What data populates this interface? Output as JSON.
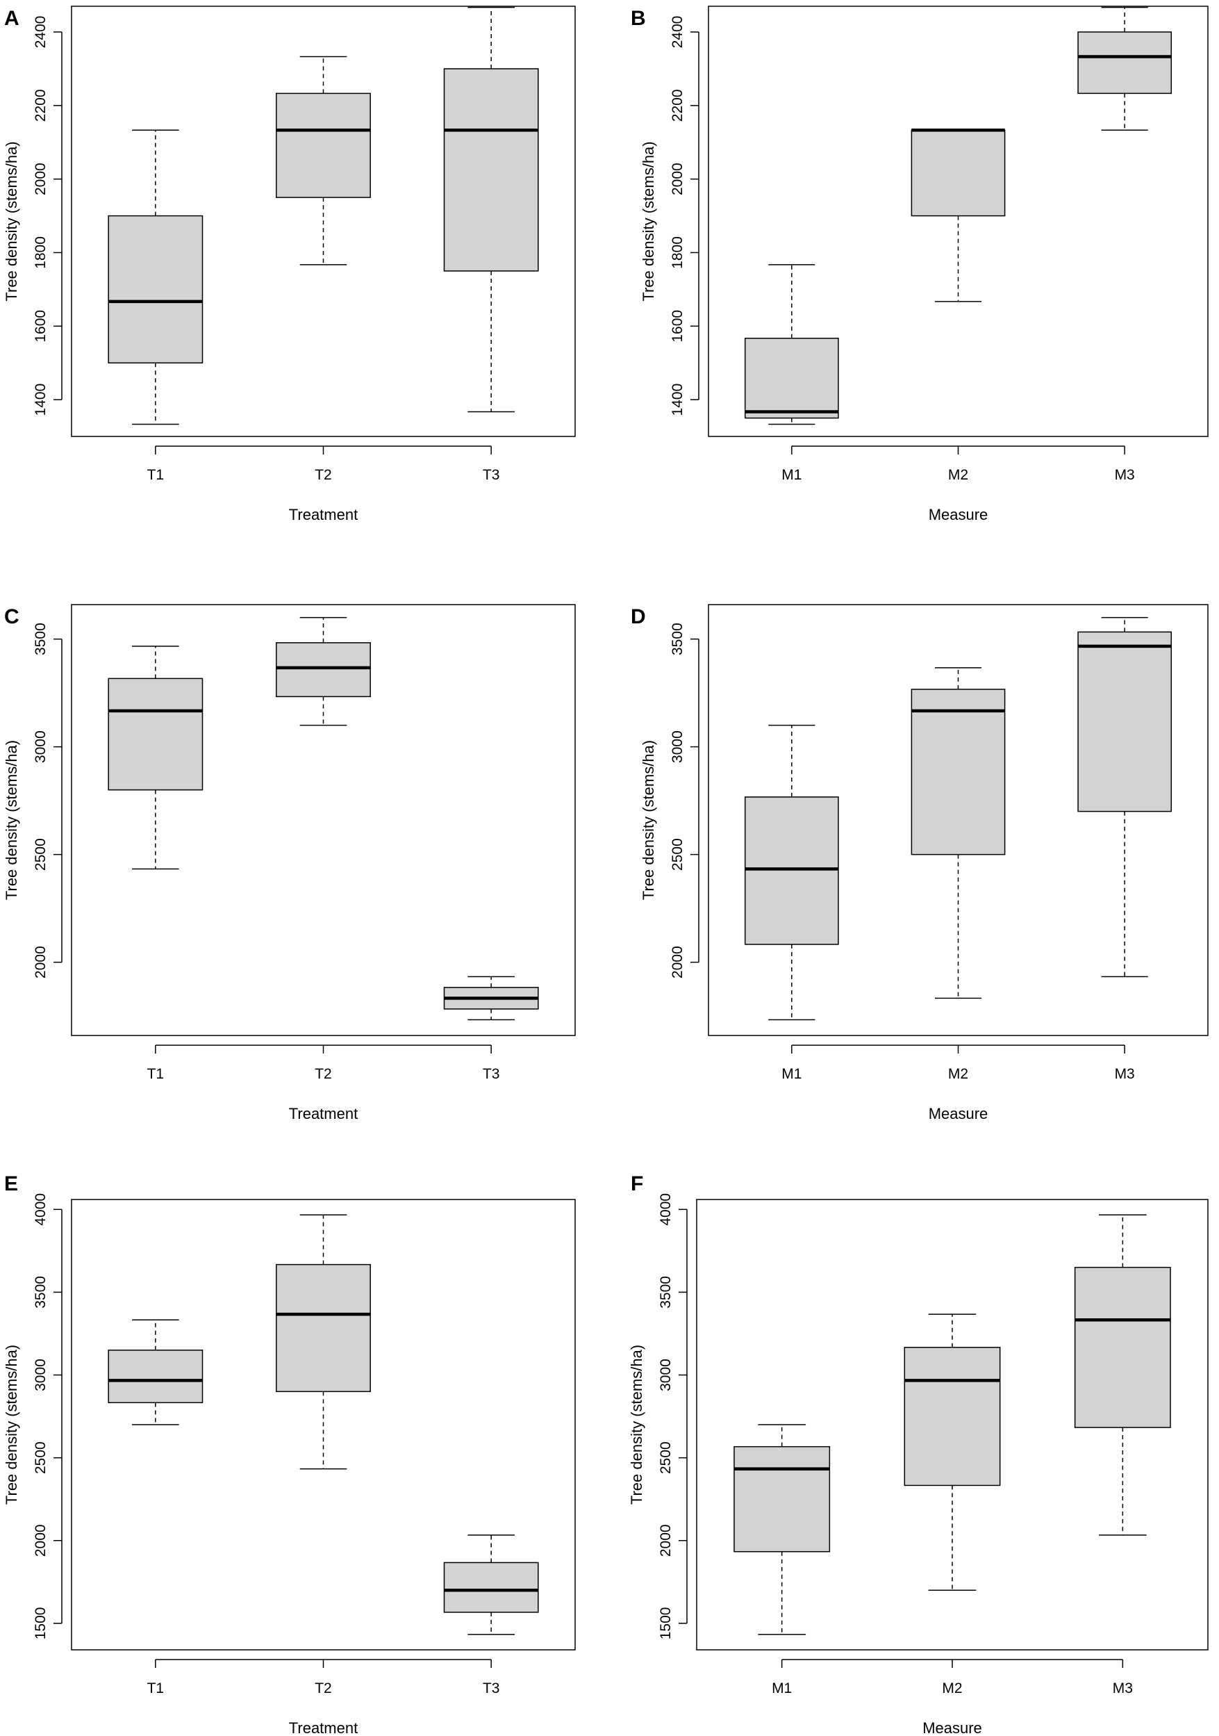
{
  "colors": {
    "box_fill": "#d3d3d3",
    "stroke": "#000000",
    "background": "#ffffff"
  },
  "chart_data": [
    {
      "panel": "A",
      "type": "boxplot",
      "xlabel": "Treatment",
      "ylabel": "Tree density (stems/ha)",
      "ylim": [
        1300,
        2470
      ],
      "yticks": [
        1400,
        1600,
        1800,
        2000,
        2200,
        2400
      ],
      "categories": [
        "T1",
        "T2",
        "T3"
      ],
      "boxes": [
        {
          "category": "T1",
          "whisker_low": 1333,
          "q1": 1500,
          "median": 1667,
          "q3": 1900,
          "whisker_high": 2133
        },
        {
          "category": "T2",
          "whisker_low": 1767,
          "q1": 1950,
          "median": 2133,
          "q3": 2233,
          "whisker_high": 2333
        },
        {
          "category": "T3",
          "whisker_low": 1367,
          "q1": 1750,
          "median": 2133,
          "q3": 2300,
          "whisker_high": 2467
        }
      ]
    },
    {
      "panel": "B",
      "type": "boxplot",
      "xlabel": "Measure",
      "ylabel": "Tree density (stems/ha)",
      "ylim": [
        1300,
        2470
      ],
      "yticks": [
        1400,
        1600,
        1800,
        2000,
        2200,
        2400
      ],
      "categories": [
        "M1",
        "M2",
        "M3"
      ],
      "boxes": [
        {
          "category": "M1",
          "whisker_low": 1333,
          "q1": 1350,
          "median": 1367,
          "q3": 1567,
          "whisker_high": 1767
        },
        {
          "category": "M2",
          "whisker_low": 1667,
          "q1": 1900,
          "median": 2133,
          "q3": 2133,
          "whisker_high": 2133
        },
        {
          "category": "M3",
          "whisker_low": 2133,
          "q1": 2233,
          "median": 2333,
          "q3": 2400,
          "whisker_high": 2467
        }
      ]
    },
    {
      "panel": "C",
      "type": "boxplot",
      "xlabel": "Treatment",
      "ylabel": "Tree density (stems/ha)",
      "ylim": [
        1660,
        3660
      ],
      "yticks": [
        2000,
        2500,
        3000,
        3500
      ],
      "categories": [
        "T1",
        "T2",
        "T3"
      ],
      "boxes": [
        {
          "category": "T1",
          "whisker_low": 2433,
          "q1": 2800,
          "median": 3167,
          "q3": 3317,
          "whisker_high": 3467
        },
        {
          "category": "T2",
          "whisker_low": 3100,
          "q1": 3233,
          "median": 3367,
          "q3": 3483,
          "whisker_high": 3600
        },
        {
          "category": "T3",
          "whisker_low": 1733,
          "q1": 1783,
          "median": 1833,
          "q3": 1883,
          "whisker_high": 1933
        }
      ]
    },
    {
      "panel": "D",
      "type": "boxplot",
      "xlabel": "Measure",
      "ylabel": "Tree density (stems/ha)",
      "ylim": [
        1660,
        3660
      ],
      "yticks": [
        2000,
        2500,
        3000,
        3500
      ],
      "categories": [
        "M1",
        "M2",
        "M3"
      ],
      "boxes": [
        {
          "category": "M1",
          "whisker_low": 1733,
          "q1": 2083,
          "median": 2433,
          "q3": 2767,
          "whisker_high": 3100
        },
        {
          "category": "M2",
          "whisker_low": 1833,
          "q1": 2500,
          "median": 3167,
          "q3": 3267,
          "whisker_high": 3367
        },
        {
          "category": "M3",
          "whisker_low": 1933,
          "q1": 2700,
          "median": 3467,
          "q3": 3533,
          "whisker_high": 3600
        }
      ]
    },
    {
      "panel": "E",
      "type": "boxplot",
      "xlabel": "Treatment",
      "ylabel": "Tree density (stems/ha)",
      "ylim": [
        1340,
        4060
      ],
      "yticks": [
        1500,
        2000,
        2500,
        3000,
        3500,
        4000
      ],
      "categories": [
        "T1",
        "T2",
        "T3"
      ],
      "boxes": [
        {
          "category": "T1",
          "whisker_low": 2700,
          "q1": 2833,
          "median": 2967,
          "q3": 3150,
          "whisker_high": 3333
        },
        {
          "category": "T2",
          "whisker_low": 2433,
          "q1": 2900,
          "median": 3367,
          "q3": 3667,
          "whisker_high": 3967
        },
        {
          "category": "T3",
          "whisker_low": 1433,
          "q1": 1567,
          "median": 1700,
          "q3": 1867,
          "whisker_high": 2033
        }
      ]
    },
    {
      "panel": "F",
      "type": "boxplot",
      "xlabel": "Measure",
      "ylabel": "Tree density (stems/ha)",
      "ylim": [
        1340,
        4060
      ],
      "yticks": [
        1500,
        2000,
        2500,
        3000,
        3500,
        4000
      ],
      "categories": [
        "M1",
        "M2",
        "M3"
      ],
      "boxes": [
        {
          "category": "M1",
          "whisker_low": 1433,
          "q1": 1933,
          "median": 2433,
          "q3": 2567,
          "whisker_high": 2700
        },
        {
          "category": "M2",
          "whisker_low": 1700,
          "q1": 2333,
          "median": 2967,
          "q3": 3167,
          "whisker_high": 3367
        },
        {
          "category": "M3",
          "whisker_low": 2033,
          "q1": 2683,
          "median": 3333,
          "q3": 3650,
          "whisker_high": 3967
        }
      ]
    }
  ]
}
